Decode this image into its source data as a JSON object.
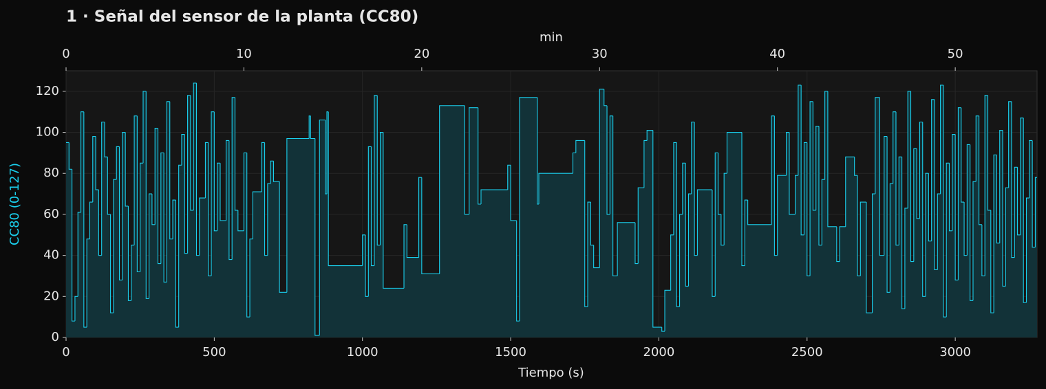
{
  "chart_data": {
    "type": "line",
    "drawstyle": "steps-post",
    "title": "1 · Señal del sensor de la planta (CC80)",
    "xlabel": "Tiempo (s)",
    "ylabel": "CC80 (0-127)",
    "x2label": "min",
    "color": "#1ad0ee",
    "fill_color": "#123238",
    "grid": true,
    "xlim": [
      0,
      3276
    ],
    "ylim": [
      0,
      130
    ],
    "xticks": [
      0,
      500,
      1000,
      1500,
      2000,
      2500,
      3000
    ],
    "yticks": [
      0,
      20,
      40,
      60,
      80,
      100,
      120
    ],
    "x2lim": [
      0,
      54.6
    ],
    "x2ticks": [
      0,
      10,
      20,
      30,
      40,
      50
    ],
    "x": [
      0,
      10,
      20,
      30,
      40,
      50,
      60,
      70,
      80,
      90,
      100,
      110,
      120,
      130,
      140,
      150,
      160,
      170,
      180,
      190,
      200,
      210,
      220,
      230,
      240,
      250,
      260,
      270,
      280,
      290,
      300,
      310,
      320,
      330,
      340,
      350,
      360,
      370,
      380,
      390,
      400,
      410,
      420,
      430,
      440,
      450,
      470,
      480,
      490,
      500,
      510,
      520,
      540,
      550,
      560,
      570,
      580,
      600,
      610,
      620,
      630,
      660,
      670,
      680,
      690,
      700,
      720,
      745,
      820,
      825,
      840,
      855,
      875,
      880,
      885,
      1000,
      1010,
      1020,
      1030,
      1040,
      1050,
      1060,
      1070,
      1140,
      1150,
      1190,
      1200,
      1260,
      1345,
      1360,
      1390,
      1400,
      1490,
      1500,
      1520,
      1530,
      1590,
      1595,
      1710,
      1720,
      1750,
      1760,
      1770,
      1780,
      1800,
      1815,
      1825,
      1835,
      1845,
      1860,
      1920,
      1930,
      1950,
      1960,
      1980,
      2010,
      2020,
      2040,
      2050,
      2060,
      2070,
      2080,
      2090,
      2100,
      2110,
      2120,
      2130,
      2180,
      2190,
      2200,
      2210,
      2220,
      2230,
      2280,
      2290,
      2300,
      2380,
      2390,
      2400,
      2430,
      2440,
      2460,
      2470,
      2480,
      2490,
      2500,
      2510,
      2520,
      2530,
      2540,
      2550,
      2560,
      2570,
      2600,
      2610,
      2630,
      2660,
      2670,
      2680,
      2700,
      2720,
      2730,
      2745,
      2760,
      2770,
      2780,
      2790,
      2800,
      2810,
      2820,
      2830,
      2840,
      2850,
      2860,
      2870,
      2880,
      2890,
      2900,
      2910,
      2920,
      2930,
      2940,
      2950,
      2960,
      2970,
      2980,
      2990,
      3000,
      3010,
      3020,
      3030,
      3040,
      3050,
      3060,
      3070,
      3080,
      3090,
      3100,
      3110,
      3120,
      3130,
      3140,
      3150,
      3160,
      3170,
      3180,
      3190,
      3200,
      3210,
      3220,
      3230,
      3240,
      3250,
      3260,
      3270
    ],
    "values": [
      95,
      82,
      8,
      20,
      61,
      110,
      5,
      48,
      66,
      98,
      72,
      40,
      105,
      88,
      60,
      12,
      77,
      93,
      28,
      100,
      64,
      18,
      45,
      108,
      32,
      85,
      120,
      19,
      70,
      55,
      102,
      36,
      90,
      27,
      115,
      48,
      67,
      5,
      84,
      99,
      41,
      118,
      62,
      124,
      40,
      68,
      95,
      30,
      110,
      52,
      85,
      57,
      96,
      38,
      117,
      62,
      52,
      90,
      10,
      48,
      71,
      95,
      40,
      75,
      86,
      76,
      22,
      97,
      108,
      97,
      1,
      106,
      70,
      110,
      35,
      50,
      20,
      93,
      35,
      118,
      45,
      100,
      24,
      55,
      39,
      78,
      31,
      113,
      60,
      112,
      65,
      72,
      84,
      57,
      8,
      117,
      65,
      80,
      90,
      96,
      15,
      66,
      45,
      34,
      121,
      113,
      60,
      108,
      30,
      56,
      36,
      73,
      96,
      101,
      5,
      3,
      23,
      50,
      95,
      15,
      60,
      85,
      25,
      70,
      105,
      40,
      72,
      20,
      90,
      60,
      45,
      80,
      100,
      35,
      67,
      55,
      108,
      40,
      79,
      100,
      60,
      79,
      123,
      50,
      95,
      30,
      115,
      62,
      103,
      45,
      77,
      120,
      54,
      37,
      54,
      88,
      79,
      30,
      66,
      12,
      70,
      117,
      40,
      98,
      22,
      75,
      110,
      45,
      88,
      14,
      63,
      120,
      37,
      92,
      58,
      105,
      20,
      80,
      47,
      116,
      33,
      70,
      123,
      10,
      85,
      52,
      99,
      28,
      112,
      66,
      40,
      94,
      18,
      76,
      108,
      55,
      30,
      118,
      62,
      12,
      89,
      46,
      101,
      25,
      73,
      115,
      39,
      83,
      50,
      107,
      17,
      68,
      96,
      44,
      78
    ]
  }
}
